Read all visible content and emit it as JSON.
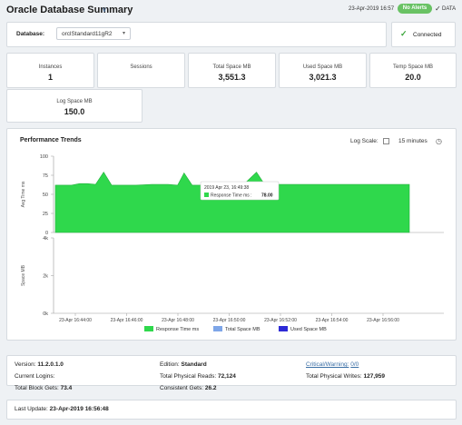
{
  "header": {
    "title": "Oracle Database Summary",
    "timestamp": "23-Apr-2019 16:57",
    "alert_badge": "No Alerts",
    "data_label": "DATA"
  },
  "selector": {
    "label": "Database:",
    "value": "orclStandard11gR2",
    "status": "Connected"
  },
  "kpis": [
    {
      "label": "Instances",
      "value": "1"
    },
    {
      "label": "Sessions",
      "value": ""
    },
    {
      "label": "Total Space MB",
      "value": "3,551.3"
    },
    {
      "label": "Used Space MB",
      "value": "3,021.3"
    },
    {
      "label": "Temp Space MB",
      "value": "20.0"
    },
    {
      "label": "Log Space MB",
      "value": "150.0"
    }
  ],
  "performance": {
    "title": "Performance Trends",
    "log_scale_label": "Log Scale:",
    "range": "15 minutes"
  },
  "chart_data": {
    "type": "area",
    "top": {
      "ylabel": "Avg Time ms",
      "yticks": [
        "100",
        "75",
        "50",
        "25",
        "0"
      ],
      "ylim": [
        0,
        100
      ],
      "series": [
        {
          "name": "Response Time ms",
          "color": "#2fd84c",
          "points": [
            [
              0,
              62
            ],
            [
              0.5,
              62
            ],
            [
              1,
              62
            ],
            [
              1.5,
              64
            ],
            [
              2,
              64
            ],
            [
              2.5,
              63
            ],
            [
              3,
              79
            ],
            [
              3.5,
              62
            ],
            [
              4,
              62
            ],
            [
              5,
              62
            ],
            [
              6,
              63
            ],
            [
              7,
              63
            ],
            [
              7.6,
              62
            ],
            [
              8,
              78
            ],
            [
              8.5,
              62
            ],
            [
              9,
              62
            ],
            [
              10,
              62
            ],
            [
              11,
              62
            ],
            [
              11.7,
              63
            ],
            [
              12.5,
              79
            ],
            [
              13,
              63
            ],
            [
              14,
              63
            ],
            [
              15,
              63
            ],
            [
              16,
              63
            ],
            [
              17,
              63
            ],
            [
              18,
              63
            ],
            [
              19,
              63
            ],
            [
              20,
              63
            ],
            [
              21,
              63
            ],
            [
              22,
              63
            ]
          ]
        }
      ]
    },
    "bottom": {
      "ylabel": "Space MB",
      "yticks": [
        "4k",
        "2k",
        "0k"
      ],
      "ylim": [
        0,
        4000
      ]
    },
    "xticks": [
      "23-Apr 16:44:00",
      "23-Apr 16:46:00",
      "23-Apr 16:48:00",
      "23-Apr 16:50:00",
      "23-Apr 16:52:00",
      "23-Apr 16:54:00",
      "23-Apr 16:56:00"
    ],
    "legend": [
      {
        "name": "Response Time ms",
        "color": "#2fd84c"
      },
      {
        "name": "Total Space MB",
        "color": "#7ea6e8"
      },
      {
        "name": "Used Space MB",
        "color": "#2d2ad6"
      }
    ],
    "tooltip": {
      "time": "2019 Apr 23, 16:49:38",
      "label": "Response Time ms :",
      "value": "78.00"
    }
  },
  "footer": {
    "version_label": "Version:",
    "version": "11.2.0.1.0",
    "edition_label": "Edition:",
    "edition": "Standard",
    "critical_label": "Critical/Warning:",
    "critical": "0/0",
    "logins_label": "Current Logins:",
    "phys_reads_label": "Total Physical Reads:",
    "phys_reads": "72,124",
    "phys_writes_label": "Total Physical Writes:",
    "phys_writes": "127,959",
    "block_gets_label": "Total Block Gets:",
    "block_gets": "73.4",
    "consistent_label": "Consistent Gets:",
    "consistent": "26.2",
    "last_update_label": "Last Update:",
    "last_update": "23-Apr-2019 16:56:48"
  }
}
